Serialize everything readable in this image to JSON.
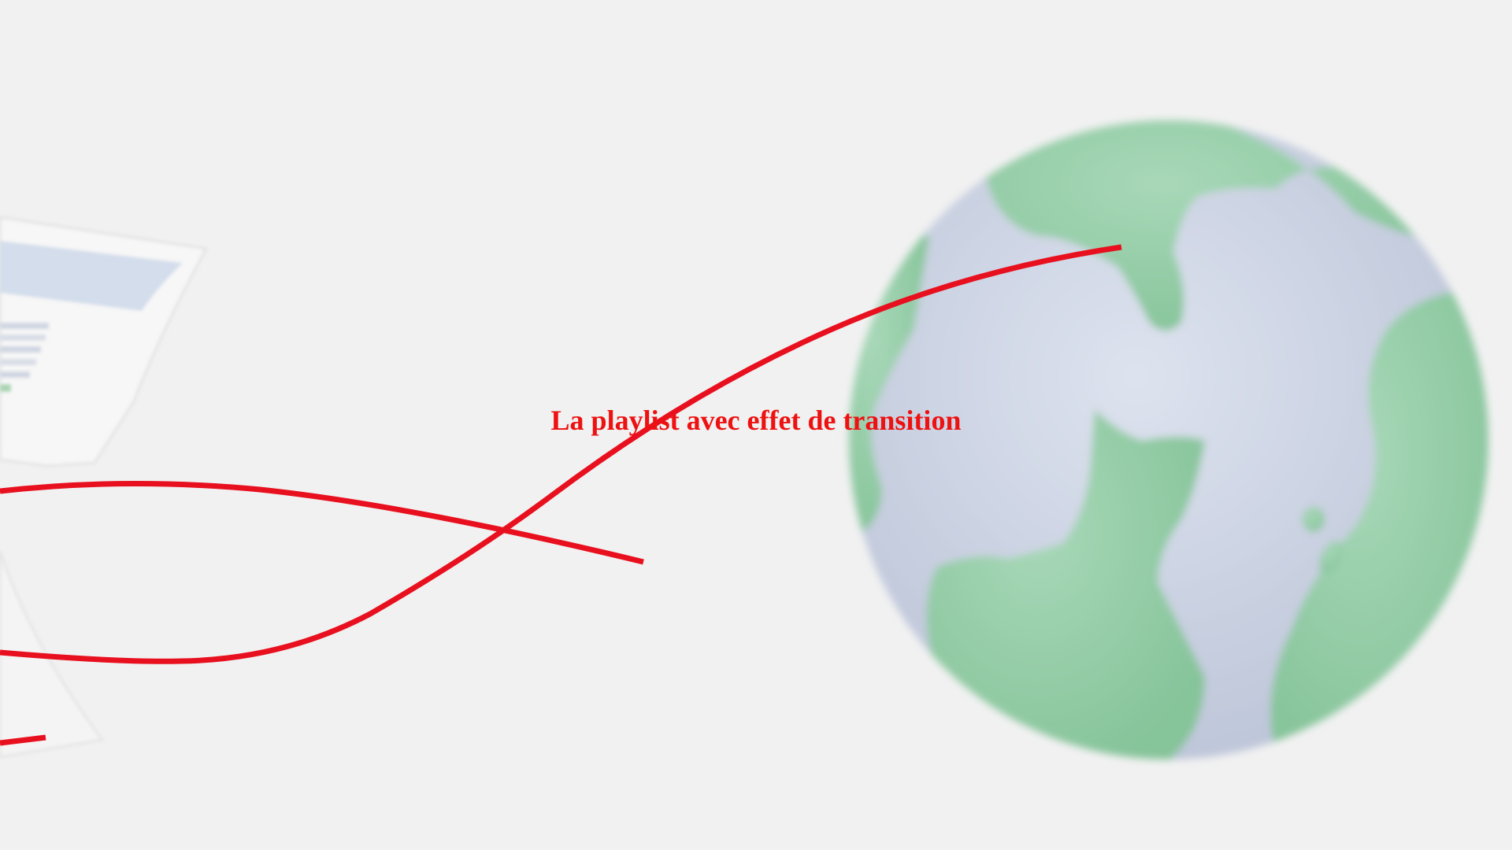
{
  "slide": {
    "caption": "La playlist avec effet de transition"
  },
  "colors": {
    "background": "#f1f1f1",
    "caption": "#ee1111",
    "ribbon": "#e8101e",
    "globe_ocean": "#d2d8e6",
    "globe_land": "#8dc8a0"
  },
  "icons": [
    "globe-icon",
    "document-icon"
  ]
}
